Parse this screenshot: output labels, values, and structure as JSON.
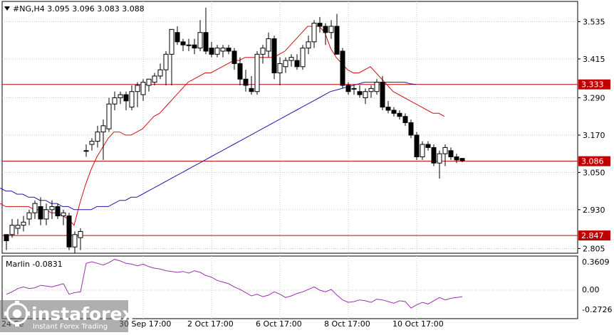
{
  "header": {
    "symbol_line": "#NG,H4  3.095 3.096 3.083 3.088"
  },
  "indicator": {
    "label": "Marlin -0.0831",
    "ticks": [
      "0.3609",
      "0.00",
      "-0.2726"
    ]
  },
  "watermark": {
    "brand": "instaforex",
    "tagline": "Instant Forex Trading"
  },
  "x_labels": [
    {
      "text": "30 Sep 17:00",
      "i": 24
    },
    {
      "text": "2 Oct 17:00",
      "i": 36
    },
    {
      "text": "6 Oct 17:00",
      "i": 48
    },
    {
      "text": "8 Oct 17:00",
      "i": 60
    },
    {
      "text": "10 Oct 17:00",
      "i": 72
    }
  ],
  "x_label_partial": "24 Se",
  "colors": {
    "bull": "#ffffff",
    "bear": "#000000",
    "level": "#c00000",
    "ma_fast": "#d01010",
    "ma_slow": "#1a1ab0",
    "osc": "#9b2fae",
    "grid": "#c8c8c8",
    "wm": "#ffffff"
  },
  "chart_data": {
    "type": "candlestick",
    "symbol": "#NG",
    "timeframe": "H4",
    "ohlc_header": [
      3.095,
      3.096,
      3.083,
      3.088
    ],
    "y_ticks": [
      3.535,
      3.415,
      3.29,
      3.17,
      3.05,
      2.93,
      2.805
    ],
    "y_range": [
      2.79,
      3.6
    ],
    "levels": [
      {
        "value": 3.333,
        "label": "3.333"
      },
      {
        "value": 3.086,
        "label": "3.086"
      },
      {
        "value": 2.847,
        "label": "2.847"
      }
    ],
    "candles": [
      [
        2.85,
        2.85,
        2.8,
        2.83
      ],
      [
        2.85,
        2.9,
        2.84,
        2.88
      ],
      [
        2.87,
        2.9,
        2.85,
        2.88
      ],
      [
        2.88,
        2.91,
        2.86,
        2.89
      ],
      [
        2.9,
        2.93,
        2.88,
        2.92
      ],
      [
        2.92,
        2.96,
        2.9,
        2.95
      ],
      [
        2.94,
        2.97,
        2.88,
        2.9
      ],
      [
        2.9,
        2.95,
        2.88,
        2.93
      ],
      [
        2.93,
        2.96,
        2.9,
        2.94
      ],
      [
        2.94,
        2.95,
        2.9,
        2.91
      ],
      [
        2.91,
        2.93,
        2.88,
        2.92
      ],
      [
        2.91,
        2.92,
        2.8,
        2.81
      ],
      [
        2.81,
        2.86,
        2.79,
        2.85
      ],
      [
        2.84,
        2.87,
        2.8,
        2.86
      ],
      [
        3.12,
        3.14,
        3.1,
        3.12
      ],
      [
        3.14,
        3.16,
        3.12,
        3.15
      ],
      [
        3.15,
        3.2,
        3.13,
        3.18
      ],
      [
        3.18,
        3.22,
        3.09,
        3.2
      ],
      [
        3.19,
        3.29,
        3.18,
        3.27
      ],
      [
        3.27,
        3.31,
        3.25,
        3.29
      ],
      [
        3.29,
        3.31,
        3.27,
        3.3
      ],
      [
        3.3,
        3.31,
        3.25,
        3.28
      ],
      [
        3.26,
        3.33,
        3.25,
        3.31
      ],
      [
        3.31,
        3.34,
        3.26,
        3.33
      ],
      [
        3.3,
        3.35,
        3.28,
        3.34
      ],
      [
        3.33,
        3.35,
        3.31,
        3.35
      ],
      [
        3.34,
        3.37,
        3.33,
        3.36
      ],
      [
        3.36,
        3.4,
        3.35,
        3.38
      ],
      [
        3.38,
        3.44,
        3.33,
        3.43
      ],
      [
        3.43,
        3.51,
        3.33,
        3.51
      ],
      [
        3.5,
        3.52,
        3.46,
        3.47
      ],
      [
        3.47,
        3.48,
        3.44,
        3.46
      ],
      [
        3.46,
        3.48,
        3.44,
        3.46
      ],
      [
        3.46,
        3.48,
        3.43,
        3.45
      ],
      [
        3.45,
        3.54,
        3.44,
        3.5
      ],
      [
        3.5,
        3.58,
        3.43,
        3.44
      ],
      [
        3.45,
        3.47,
        3.42,
        3.43
      ],
      [
        3.43,
        3.46,
        3.42,
        3.45
      ],
      [
        3.44,
        3.46,
        3.42,
        3.45
      ],
      [
        3.45,
        3.46,
        3.43,
        3.44
      ],
      [
        3.44,
        3.45,
        3.38,
        3.4
      ],
      [
        3.4,
        3.42,
        3.33,
        3.35
      ],
      [
        3.35,
        3.38,
        3.31,
        3.33
      ],
      [
        3.32,
        3.36,
        3.3,
        3.31
      ],
      [
        3.31,
        3.44,
        3.3,
        3.43
      ],
      [
        3.43,
        3.46,
        3.4,
        3.45
      ],
      [
        3.44,
        3.5,
        3.42,
        3.48
      ],
      [
        3.48,
        3.49,
        3.35,
        3.37
      ],
      [
        3.37,
        3.42,
        3.33,
        3.4
      ],
      [
        3.39,
        3.42,
        3.37,
        3.41
      ],
      [
        3.41,
        3.43,
        3.39,
        3.42
      ],
      [
        3.41,
        3.43,
        3.38,
        3.39
      ],
      [
        3.39,
        3.46,
        3.38,
        3.45
      ],
      [
        3.45,
        3.49,
        3.43,
        3.47
      ],
      [
        3.47,
        3.54,
        3.45,
        3.53
      ],
      [
        3.53,
        3.55,
        3.5,
        3.52
      ],
      [
        3.52,
        3.53,
        3.46,
        3.5
      ],
      [
        3.5,
        3.54,
        3.48,
        3.52
      ],
      [
        3.52,
        3.56,
        3.43,
        3.43
      ],
      [
        3.44,
        3.45,
        3.32,
        3.33
      ],
      [
        3.33,
        3.34,
        3.3,
        3.31
      ],
      [
        3.32,
        3.33,
        3.3,
        3.32
      ],
      [
        3.31,
        3.33,
        3.29,
        3.3
      ],
      [
        3.29,
        3.32,
        3.27,
        3.31
      ],
      [
        3.31,
        3.33,
        3.29,
        3.32
      ],
      [
        3.31,
        3.35,
        3.3,
        3.34
      ],
      [
        3.34,
        3.36,
        3.25,
        3.26
      ],
      [
        3.26,
        3.28,
        3.24,
        3.25
      ],
      [
        3.25,
        3.26,
        3.23,
        3.24
      ],
      [
        3.24,
        3.25,
        3.22,
        3.23
      ],
      [
        3.23,
        3.24,
        3.2,
        3.21
      ],
      [
        3.21,
        3.22,
        3.16,
        3.17
      ],
      [
        3.17,
        3.18,
        3.09,
        3.1
      ],
      [
        3.1,
        3.15,
        3.09,
        3.14
      ],
      [
        3.14,
        3.15,
        3.12,
        3.13
      ],
      [
        3.13,
        3.14,
        3.07,
        3.08
      ],
      [
        3.08,
        3.12,
        3.03,
        3.11
      ],
      [
        3.11,
        3.14,
        3.07,
        3.13
      ],
      [
        3.12,
        3.13,
        3.09,
        3.1
      ],
      [
        3.1,
        3.11,
        3.08,
        3.09
      ],
      [
        3.095,
        3.096,
        3.083,
        3.088
      ]
    ],
    "ma_fast": [
      2.95,
      2.94,
      2.94,
      2.94,
      2.94,
      2.94,
      2.93,
      2.93,
      2.93,
      2.92,
      2.92,
      2.91,
      2.9,
      2.88,
      2.95,
      3.01,
      3.06,
      3.1,
      3.13,
      3.16,
      3.18,
      3.18,
      3.17,
      3.17,
      3.18,
      3.19,
      3.21,
      3.23,
      3.24,
      3.26,
      3.28,
      3.3,
      3.32,
      3.34,
      3.35,
      3.36,
      3.37,
      3.37,
      3.38,
      3.39,
      3.4,
      3.41,
      3.41,
      3.42,
      3.42,
      3.42,
      3.42,
      3.42,
      3.42,
      3.43,
      3.44,
      3.46,
      3.48,
      3.5,
      3.52,
      3.52,
      3.52,
      3.5,
      3.45,
      3.42,
      3.4,
      3.38,
      3.37,
      3.37,
      3.38,
      3.39,
      3.37,
      3.35,
      3.33,
      3.31,
      3.3,
      3.29,
      3.28,
      3.27,
      3.26,
      3.25,
      3.24,
      3.24,
      3.23
    ],
    "ma_slow": [
      3.0,
      2.99,
      2.99,
      2.98,
      2.98,
      2.97,
      2.97,
      2.96,
      2.96,
      2.95,
      2.95,
      2.94,
      2.94,
      2.93,
      2.93,
      2.93,
      2.93,
      2.94,
      2.94,
      2.94,
      2.95,
      2.96,
      2.96,
      2.97,
      2.97,
      2.98,
      2.99,
      3.0,
      3.01,
      3.02,
      3.03,
      3.04,
      3.05,
      3.06,
      3.07,
      3.08,
      3.09,
      3.1,
      3.11,
      3.12,
      3.13,
      3.14,
      3.15,
      3.16,
      3.17,
      3.18,
      3.19,
      3.2,
      3.21,
      3.22,
      3.23,
      3.24,
      3.25,
      3.26,
      3.27,
      3.28,
      3.29,
      3.3,
      3.31,
      3.315,
      3.32,
      3.325,
      3.33,
      3.335,
      3.34,
      3.34,
      3.34,
      3.34,
      3.34,
      3.34,
      3.34,
      3.34,
      3.335,
      3.333
    ],
    "osc_range": [
      -0.35,
      0.42
    ],
    "oscillator": [
      -0.05,
      -0.02,
      0.02,
      0.04,
      0.02,
      0.03,
      0.06,
      0.05,
      0.04,
      0.06,
      0.08,
      -0.05,
      -0.03,
      -0.02,
      0.33,
      0.35,
      0.33,
      0.31,
      0.34,
      0.38,
      0.36,
      0.33,
      0.32,
      0.3,
      0.32,
      0.29,
      0.27,
      0.26,
      0.24,
      0.23,
      0.22,
      0.23,
      0.21,
      0.24,
      0.22,
      0.18,
      0.16,
      0.12,
      0.1,
      0.08,
      0.04,
      0.01,
      -0.03,
      -0.07,
      -0.05,
      -0.08,
      -0.06,
      -0.02,
      -0.05,
      -0.09,
      -0.07,
      -0.04,
      -0.02,
      0.01,
      0.04,
      0.0,
      -0.02,
      0.01,
      -0.06,
      -0.12,
      -0.15,
      -0.14,
      -0.12,
      -0.13,
      -0.15,
      -0.11,
      -0.12,
      -0.14,
      -0.16,
      -0.13,
      -0.14,
      -0.22,
      -0.18,
      -0.15,
      -0.17,
      -0.13,
      -0.09,
      -0.12,
      -0.1,
      -0.09,
      -0.08
    ]
  }
}
